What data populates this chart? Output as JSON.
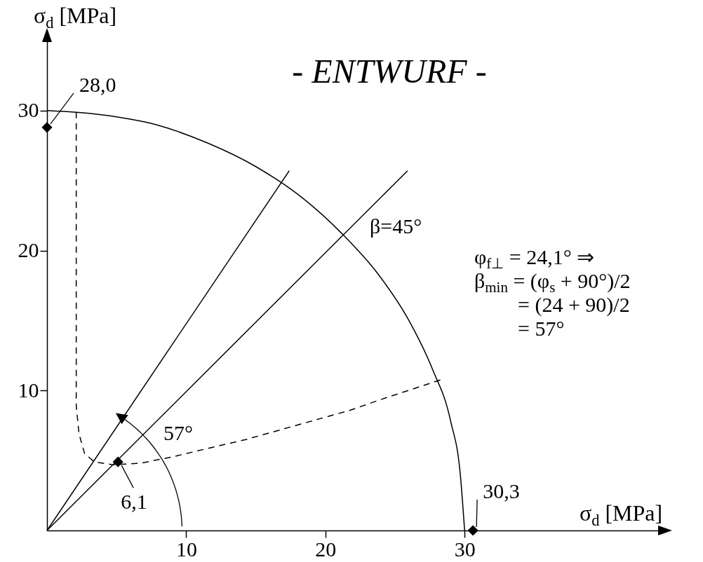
{
  "chart_data": {
    "type": "line",
    "title": "- ENTWURF -",
    "xlabel": "σ$_{d}$ [MPa]",
    "ylabel": "σ$_{d}$ [MPa]",
    "xlim": [
      0,
      44
    ],
    "ylim": [
      0,
      35
    ],
    "xticks": [
      10,
      20,
      30
    ],
    "yticks": [
      10,
      20,
      30
    ],
    "grid": false,
    "series": [
      {
        "type": "line",
        "color": "#000000",
        "x": [
          0,
          3.9,
          7.8,
          11.5,
          15.0,
          18.3,
          21.2,
          23.8,
          26.0,
          27.7,
          29.0,
          29.7,
          30.0
        ],
        "values": [
          30.0,
          29.7,
          29.0,
          27.7,
          26.0,
          23.8,
          21.2,
          18.3,
          15.0,
          11.5,
          7.8,
          3.9,
          0
        ]
      },
      {
        "type": "line",
        "color": "#000000",
        "x": [
          0,
          17.4
        ],
        "values": [
          0,
          25.7
        ]
      },
      {
        "type": "line",
        "color": "#000000",
        "x": [
          0,
          25.9
        ],
        "values": [
          0,
          25.7
        ]
      },
      {
        "type": "line",
        "color": "#000000",
        "line_style": "dashed",
        "x": [
          2.1,
          2.1,
          2.3,
          2.7,
          3.4,
          4.7,
          6.7,
          9.2,
          11.7,
          14.3,
          16.8,
          19.3,
          21.8,
          24.4,
          28.4
        ],
        "values": [
          29.9,
          8.9,
          6.9,
          5.5,
          4.9,
          4.7,
          4.8,
          5.3,
          5.9,
          6.5,
          7.2,
          7.9,
          8.6,
          9.5,
          10.8
        ]
      },
      {
        "type": "scatter",
        "color": "#000000",
        "marker": "diamond",
        "x": [
          0,
          5.1,
          30.6
        ],
        "values": [
          28.8,
          4.9,
          0
        ]
      }
    ],
    "annotations": [
      {
        "text": "28,0",
        "x": 0,
        "y": 28.8
      },
      {
        "text": "6,1",
        "x": 5.1,
        "y": 4.9
      },
      {
        "text": "30,3",
        "x": 30.6,
        "y": 0
      },
      "β=45°",
      "57°",
      "φ$_{f⊥}$ = 24,1° ⇒",
      "β$_{min}$ = (φ$_{s}$ + 90°)/2",
      "= (24 + 90)/2",
      "= 57°"
    ]
  }
}
